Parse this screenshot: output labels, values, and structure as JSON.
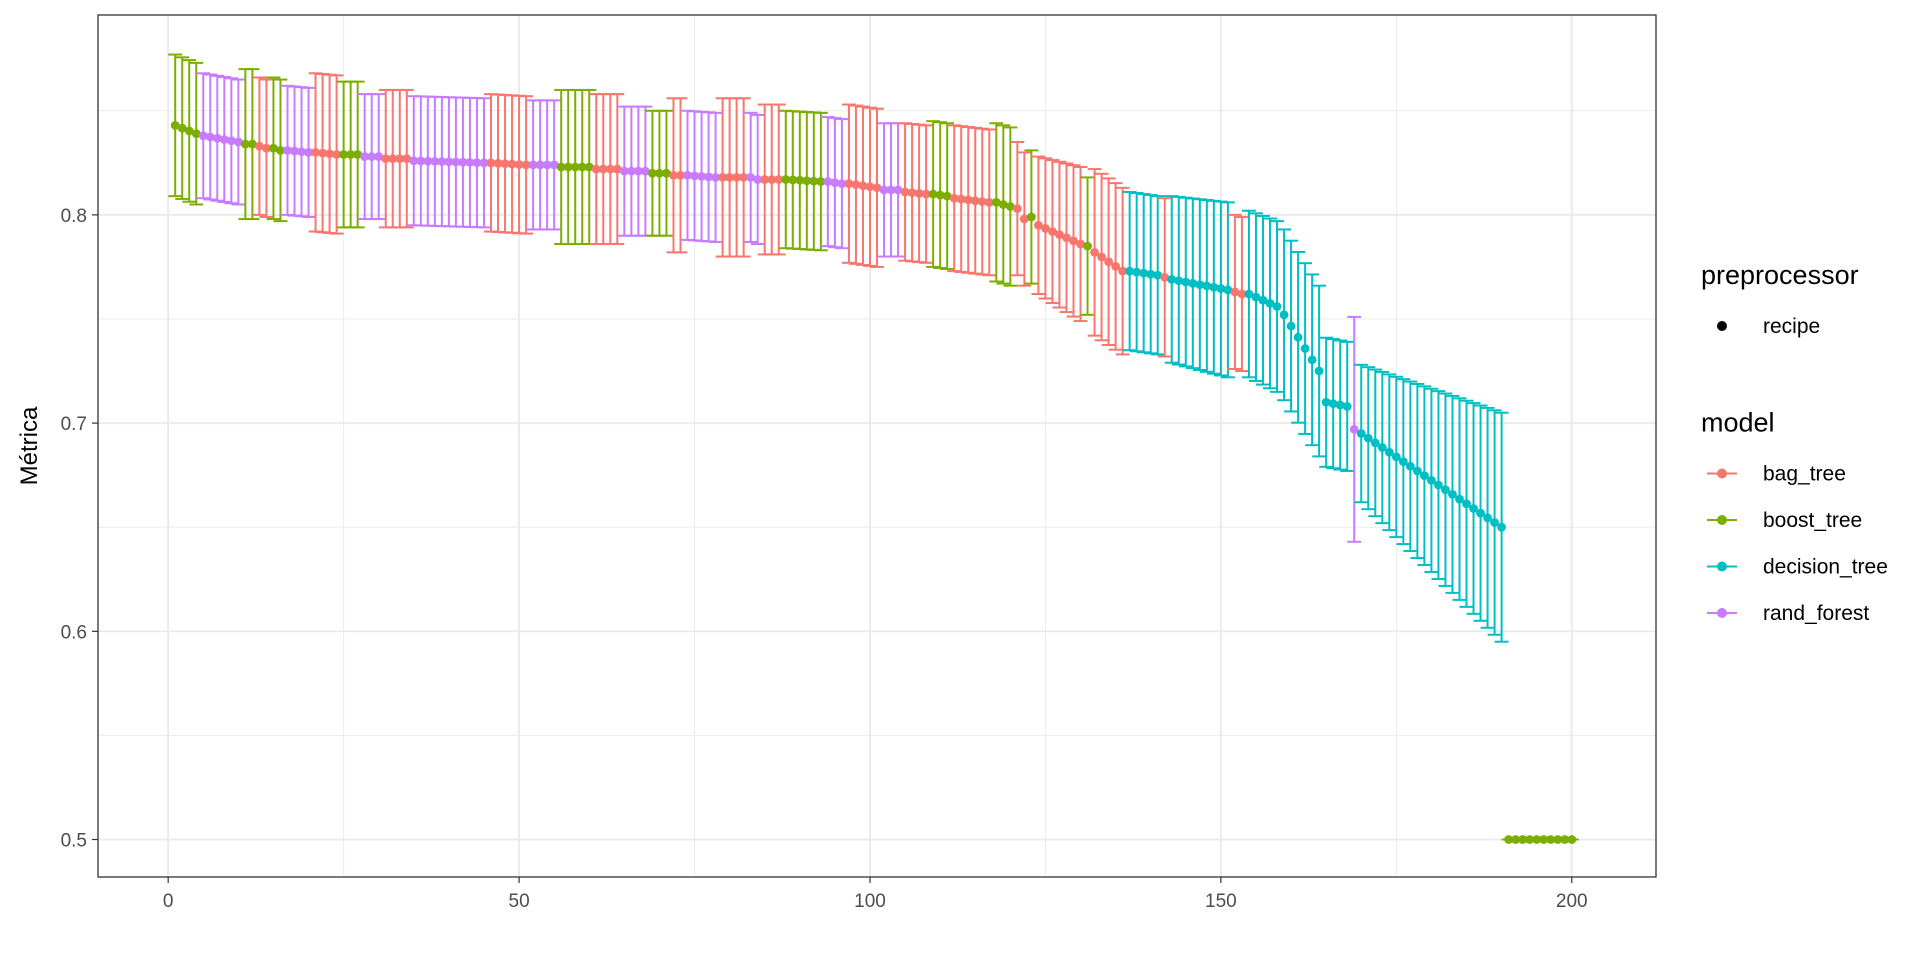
{
  "chart_data": {
    "type": "scatter",
    "title": "",
    "xlabel": "",
    "ylabel": "Métrica",
    "xlim": [
      -10,
      212
    ],
    "ylim": [
      0.482,
      0.896
    ],
    "x_ticks": [
      0,
      50,
      100,
      150,
      200
    ],
    "y_ticks": [
      0.5,
      0.6,
      0.7,
      0.8
    ],
    "x_tick_labels": [
      "0",
      "50",
      "100",
      "150",
      "200"
    ],
    "y_tick_labels": [
      "0.5",
      "0.6",
      "0.7",
      "0.8"
    ],
    "grid": true,
    "legend_position": "right",
    "legends": [
      {
        "title": "preprocessor",
        "entries": [
          {
            "label": "recipe",
            "color": "#000000",
            "marker": "point"
          }
        ]
      },
      {
        "title": "model",
        "entries": [
          {
            "label": "bag_tree",
            "color": "#F8766D",
            "marker": "point-line"
          },
          {
            "label": "boost_tree",
            "color": "#7CAE00",
            "marker": "point-line"
          },
          {
            "label": "decision_tree",
            "color": "#00BFC4",
            "marker": "point-line"
          },
          {
            "label": "rand_forest",
            "color": "#C77CFF",
            "marker": "point-line"
          }
        ]
      }
    ],
    "model_colors": {
      "bag_tree": "#F8766D",
      "boost_tree": "#7CAE00",
      "decision_tree": "#00BFC4",
      "rand_forest": "#C77CFF"
    },
    "segments": [
      {
        "x_from": 1,
        "x_to": 4,
        "model": "boost_tree",
        "y_from": 0.843,
        "y_to": 0.839,
        "se_from": 0.034,
        "se_to": 0.034
      },
      {
        "x_from": 5,
        "x_to": 10,
        "model": "rand_forest",
        "y_from": 0.838,
        "y_to": 0.835,
        "se_from": 0.03,
        "se_to": 0.03
      },
      {
        "x_from": 11,
        "x_to": 12,
        "model": "boost_tree",
        "y_from": 0.834,
        "y_to": 0.834,
        "se_from": 0.036,
        "se_to": 0.036
      },
      {
        "x_from": 13,
        "x_to": 14,
        "model": "bag_tree",
        "y_from": 0.833,
        "y_to": 0.832,
        "se_from": 0.033,
        "se_to": 0.033
      },
      {
        "x_from": 15,
        "x_to": 16,
        "model": "boost_tree",
        "y_from": 0.832,
        "y_to": 0.831,
        "se_from": 0.034,
        "se_to": 0.034
      },
      {
        "x_from": 17,
        "x_to": 20,
        "model": "rand_forest",
        "y_from": 0.831,
        "y_to": 0.83,
        "se_from": 0.031,
        "se_to": 0.031
      },
      {
        "x_from": 21,
        "x_to": 24,
        "model": "bag_tree",
        "y_from": 0.83,
        "y_to": 0.829,
        "se_from": 0.038,
        "se_to": 0.038
      },
      {
        "x_from": 25,
        "x_to": 27,
        "model": "boost_tree",
        "y_from": 0.829,
        "y_to": 0.829,
        "se_from": 0.035,
        "se_to": 0.035
      },
      {
        "x_from": 28,
        "x_to": 30,
        "model": "rand_forest",
        "y_from": 0.828,
        "y_to": 0.828,
        "se_from": 0.03,
        "se_to": 0.03
      },
      {
        "x_from": 31,
        "x_to": 34,
        "model": "bag_tree",
        "y_from": 0.827,
        "y_to": 0.827,
        "se_from": 0.033,
        "se_to": 0.033
      },
      {
        "x_from": 35,
        "x_to": 45,
        "model": "rand_forest",
        "y_from": 0.826,
        "y_to": 0.825,
        "se_from": 0.031,
        "se_to": 0.031
      },
      {
        "x_from": 46,
        "x_to": 51,
        "model": "bag_tree",
        "y_from": 0.825,
        "y_to": 0.824,
        "se_from": 0.033,
        "se_to": 0.033
      },
      {
        "x_from": 52,
        "x_to": 55,
        "model": "rand_forest",
        "y_from": 0.824,
        "y_to": 0.824,
        "se_from": 0.031,
        "se_to": 0.031
      },
      {
        "x_from": 56,
        "x_to": 60,
        "model": "boost_tree",
        "y_from": 0.823,
        "y_to": 0.823,
        "se_from": 0.037,
        "se_to": 0.037
      },
      {
        "x_from": 61,
        "x_to": 64,
        "model": "bag_tree",
        "y_from": 0.822,
        "y_to": 0.822,
        "se_from": 0.036,
        "se_to": 0.036
      },
      {
        "x_from": 65,
        "x_to": 68,
        "model": "rand_forest",
        "y_from": 0.821,
        "y_to": 0.821,
        "se_from": 0.031,
        "se_to": 0.031
      },
      {
        "x_from": 69,
        "x_to": 71,
        "model": "boost_tree",
        "y_from": 0.82,
        "y_to": 0.82,
        "se_from": 0.03,
        "se_to": 0.03
      },
      {
        "x_from": 72,
        "x_to": 73,
        "model": "bag_tree",
        "y_from": 0.819,
        "y_to": 0.819,
        "se_from": 0.037,
        "se_to": 0.037
      },
      {
        "x_from": 74,
        "x_to": 78,
        "model": "rand_forest",
        "y_from": 0.819,
        "y_to": 0.818,
        "se_from": 0.031,
        "se_to": 0.031
      },
      {
        "x_from": 79,
        "x_to": 82,
        "model": "bag_tree",
        "y_from": 0.818,
        "y_to": 0.818,
        "se_from": 0.038,
        "se_to": 0.038
      },
      {
        "x_from": 83,
        "x_to": 84,
        "model": "rand_forest",
        "y_from": 0.818,
        "y_to": 0.817,
        "se_from": 0.031,
        "se_to": 0.031
      },
      {
        "x_from": 85,
        "x_to": 87,
        "model": "bag_tree",
        "y_from": 0.817,
        "y_to": 0.817,
        "se_from": 0.036,
        "se_to": 0.036
      },
      {
        "x_from": 88,
        "x_to": 93,
        "model": "boost_tree",
        "y_from": 0.817,
        "y_to": 0.816,
        "se_from": 0.033,
        "se_to": 0.033
      },
      {
        "x_from": 94,
        "x_to": 96,
        "model": "rand_forest",
        "y_from": 0.816,
        "y_to": 0.815,
        "se_from": 0.031,
        "se_to": 0.031
      },
      {
        "x_from": 97,
        "x_to": 101,
        "model": "bag_tree",
        "y_from": 0.815,
        "y_to": 0.813,
        "se_from": 0.038,
        "se_to": 0.038
      },
      {
        "x_from": 102,
        "x_to": 104,
        "model": "rand_forest",
        "y_from": 0.812,
        "y_to": 0.812,
        "se_from": 0.032,
        "se_to": 0.032
      },
      {
        "x_from": 105,
        "x_to": 108,
        "model": "bag_tree",
        "y_from": 0.811,
        "y_to": 0.81,
        "se_from": 0.033,
        "se_to": 0.033
      },
      {
        "x_from": 109,
        "x_to": 111,
        "model": "boost_tree",
        "y_from": 0.81,
        "y_to": 0.809,
        "se_from": 0.035,
        "se_to": 0.035
      },
      {
        "x_from": 112,
        "x_to": 117,
        "model": "bag_tree",
        "y_from": 0.808,
        "y_to": 0.806,
        "se_from": 0.035,
        "se_to": 0.035
      },
      {
        "x_from": 118,
        "x_to": 120,
        "model": "boost_tree",
        "y_from": 0.806,
        "y_to": 0.804,
        "se_from": 0.038,
        "se_to": 0.038
      },
      {
        "x_from": 121,
        "x_to": 122,
        "model": "bag_tree",
        "y_from": 0.803,
        "y_to": 0.798,
        "se_from": 0.032,
        "se_to": 0.032
      },
      {
        "x_from": 123,
        "x_to": 123,
        "model": "boost_tree",
        "y_from": 0.799,
        "y_to": 0.799,
        "se_from": 0.032,
        "se_to": 0.032
      },
      {
        "x_from": 124,
        "x_to": 130,
        "model": "bag_tree",
        "y_from": 0.795,
        "y_to": 0.786,
        "se_from": 0.033,
        "se_to": 0.037
      },
      {
        "x_from": 131,
        "x_to": 131,
        "model": "boost_tree",
        "y_from": 0.785,
        "y_to": 0.785,
        "se_from": 0.033,
        "se_to": 0.033
      },
      {
        "x_from": 132,
        "x_to": 136,
        "model": "bag_tree",
        "y_from": 0.782,
        "y_to": 0.773,
        "se_from": 0.04,
        "se_to": 0.04
      },
      {
        "x_from": 137,
        "x_to": 141,
        "model": "decision_tree",
        "y_from": 0.773,
        "y_to": 0.771,
        "se_from": 0.038,
        "se_to": 0.038
      },
      {
        "x_from": 142,
        "x_to": 142,
        "model": "bag_tree",
        "y_from": 0.77,
        "y_to": 0.77,
        "se_from": 0.038,
        "se_to": 0.038
      },
      {
        "x_from": 143,
        "x_to": 151,
        "model": "decision_tree",
        "y_from": 0.769,
        "y_to": 0.764,
        "se_from": 0.04,
        "se_to": 0.042
      },
      {
        "x_from": 152,
        "x_to": 153,
        "model": "bag_tree",
        "y_from": 0.763,
        "y_to": 0.762,
        "se_from": 0.037,
        "se_to": 0.037
      },
      {
        "x_from": 154,
        "x_to": 158,
        "model": "decision_tree",
        "y_from": 0.762,
        "y_to": 0.756,
        "se_from": 0.04,
        "se_to": 0.041
      },
      {
        "x_from": 159,
        "x_to": 164,
        "model": "decision_tree",
        "y_from": 0.752,
        "y_to": 0.725,
        "se_from": 0.041,
        "se_to": 0.041
      },
      {
        "x_from": 165,
        "x_to": 168,
        "model": "decision_tree",
        "y_from": 0.71,
        "y_to": 0.708,
        "se_from": 0.031,
        "se_to": 0.031
      },
      {
        "x_from": 169,
        "x_to": 169,
        "model": "rand_forest",
        "y_from": 0.697,
        "y_to": 0.697,
        "se_from": 0.054,
        "se_to": 0.054
      },
      {
        "x_from": 170,
        "x_to": 190,
        "model": "decision_tree",
        "y_from": 0.695,
        "y_to": 0.65,
        "se_from": 0.033,
        "se_to": 0.055
      }
    ],
    "tail": {
      "x_from": 191,
      "x_to": 200,
      "model": "boost_tree",
      "y": 0.5
    }
  }
}
